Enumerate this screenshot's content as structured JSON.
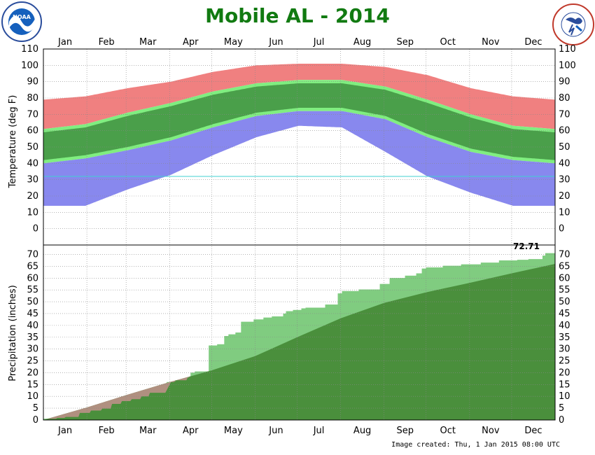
{
  "title": "Mobile AL - 2014",
  "footer": "Image created: Thu, 1 Jan 2015 08:00 UTC",
  "logos": {
    "left": "noaa-logo",
    "right": "nws-logo",
    "left_text": "NOAA",
    "right_text": "NATIONAL WEATHER SERVICE"
  },
  "colors": {
    "title": "#117a11",
    "record_high_band": "#f08080",
    "normal_band": "#80ee80",
    "record_low_band": "#8888ee",
    "actual_range": "#1d5e1d",
    "freezing_line": "#40d0d0",
    "precip_observed": "#80cc80",
    "precip_normal": "#4a8f3c",
    "precip_deficit": "#b09080"
  },
  "chart_data": [
    {
      "type": "area",
      "name": "temperature",
      "ylabel": "Temperature (deg F)",
      "ylim": [
        -10,
        110
      ],
      "yticks": [
        0,
        10,
        20,
        30,
        40,
        50,
        60,
        70,
        80,
        90,
        100,
        110
      ],
      "months": [
        "Jan",
        "Feb",
        "Mar",
        "Apr",
        "May",
        "Jun",
        "Jul",
        "Aug",
        "Sep",
        "Oct",
        "Nov",
        "Dec"
      ],
      "grid": true,
      "freezing_line": 32,
      "record_high_knots": {
        "day": [
          0,
          30,
          60,
          91,
          121,
          152,
          182,
          213,
          244,
          274,
          305,
          335,
          365
        ],
        "value": [
          79,
          81,
          86,
          90,
          96,
          100,
          101,
          101,
          99,
          94,
          86,
          81,
          79
        ]
      },
      "normal_high_knots": {
        "day": [
          0,
          30,
          60,
          91,
          121,
          152,
          182,
          213,
          244,
          274,
          305,
          335,
          365
        ],
        "value": [
          61,
          64,
          71,
          77,
          84,
          89,
          91,
          91,
          87,
          79,
          70,
          63,
          61
        ]
      },
      "normal_low_knots": {
        "day": [
          0,
          30,
          60,
          91,
          121,
          152,
          182,
          213,
          244,
          274,
          305,
          335,
          365
        ],
        "value": [
          40,
          43,
          48,
          54,
          62,
          69,
          72,
          72,
          67,
          56,
          47,
          42,
          40
        ]
      },
      "record_low_knots": {
        "day": [
          0,
          30,
          60,
          91,
          121,
          152,
          182,
          213,
          244,
          274,
          305,
          335,
          365
        ],
        "value": [
          14,
          14,
          24,
          33,
          45,
          56,
          63,
          62,
          47,
          32,
          22,
          14,
          14
        ]
      }
    },
    {
      "type": "area",
      "name": "precipitation",
      "ylabel": "Precipitation (inches)",
      "ylim": [
        0,
        74
      ],
      "yticks": [
        0,
        5,
        10,
        15,
        20,
        25,
        30,
        35,
        40,
        45,
        50,
        55,
        60,
        65,
        70
      ],
      "annotation": "72.71",
      "grid": true,
      "observed_cumulative": {
        "day": [
          0,
          10,
          16,
          26,
          34,
          42,
          49,
          56,
          63,
          70,
          76,
          88,
          94,
          103,
          105,
          108,
          116,
          118,
          124,
          129,
          132,
          137,
          141,
          150,
          157,
          163,
          171,
          173,
          178,
          184,
          187,
          201,
          210,
          213,
          225,
          240,
          247,
          258,
          266,
          270,
          273,
          285,
          298,
          312,
          325,
          338,
          346,
          356,
          358,
          365
        ],
        "value": [
          0.5,
          0.9,
          1.3,
          3.0,
          4.0,
          4.8,
          6.8,
          8.0,
          8.8,
          10.0,
          11.5,
          16.0,
          16.8,
          18.0,
          20.0,
          20.5,
          20.5,
          31.5,
          32.0,
          35.5,
          36.2,
          37.0,
          41.5,
          42.5,
          43.3,
          43.8,
          45.0,
          46.0,
          46.5,
          47.2,
          47.5,
          48.8,
          53.5,
          54.5,
          55.2,
          57.5,
          60.0,
          61.0,
          62.0,
          64.0,
          64.5,
          65.2,
          65.8,
          66.5,
          67.5,
          67.7,
          68.0,
          69.5,
          70.5,
          72.71
        ]
      },
      "normal_cumulative": {
        "day": [
          0,
          31,
          59,
          90,
          120,
          151,
          181,
          212,
          243,
          273,
          304,
          334,
          365
        ],
        "value": [
          0,
          5.3,
          10.5,
          16.0,
          21.0,
          27.0,
          35.0,
          43.0,
          49.5,
          54.0,
          58.0,
          62.0,
          66.0
        ]
      }
    }
  ]
}
